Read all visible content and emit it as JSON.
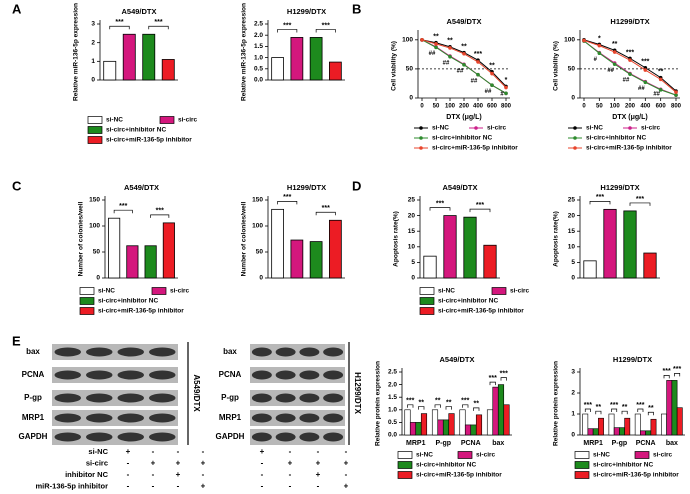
{
  "groups": {
    "names": [
      "si-NC",
      "si-circ",
      "si-circ+inhibitor NC",
      "si-circ+miR-136-5p inhibitor"
    ],
    "colors": [
      "#ffffff",
      "#d4177d",
      "#1d8a1d",
      "#ec1c24"
    ]
  },
  "chart_data": [
    {
      "type": "bar",
      "panel": "A",
      "title": "A549/DTX",
      "y_label": "Relative miR-136-5p expression",
      "values": [
        1.0,
        2.45,
        2.45,
        1.1
      ],
      "ylim": [
        0,
        3
      ],
      "yticks": [
        0,
        1,
        2,
        3
      ],
      "significance": [
        "***",
        "***"
      ]
    },
    {
      "type": "bar",
      "title": "H1299/DTX",
      "y_label": "Relative miR-136-5p expression",
      "values": [
        1.0,
        1.9,
        1.9,
        0.8
      ],
      "ylim": [
        0,
        2.5
      ],
      "yticks": [
        {
          "value": 0,
          "label": "0.0"
        },
        {
          "value": 0.5,
          "label": "0.5"
        },
        {
          "value": 1,
          "label": "1.0"
        },
        {
          "value": 1.5,
          "label": "1.5"
        },
        {
          "value": 2,
          "label": "2.0"
        },
        {
          "value": 2.5,
          "label": "2.5"
        }
      ],
      "significance": [
        "***",
        "***"
      ]
    },
    {
      "type": "line",
      "panel": "B",
      "title": "A549/DTX",
      "y_label": "Cell viability (%)",
      "x_label": "DTX (μg/L)",
      "categories": [
        "0",
        "50",
        "100",
        "200",
        "400",
        "600",
        "800"
      ],
      "ylim": [
        0,
        110
      ],
      "yticks": [
        0,
        50,
        100
      ],
      "hline": 50,
      "series": [
        {
          "color": "#000000",
          "values": [
            100,
            95,
            88,
            78,
            65,
            45,
            20
          ]
        },
        {
          "color": "#cc1f8a",
          "values": [
            100,
            88,
            72,
            58,
            40,
            22,
            8
          ]
        },
        {
          "color": "#2e8b2e",
          "values": [
            100,
            87,
            71,
            57,
            40,
            22,
            8
          ]
        },
        {
          "color": "#e8452c",
          "values": [
            100,
            93,
            86,
            76,
            62,
            42,
            18
          ]
        }
      ],
      "significance": [
        null,
        "**",
        "**",
        "**",
        "***",
        "**",
        "*"
      ],
      "reversal": [
        null,
        "##",
        "##",
        "##",
        "##",
        "##",
        "#"
      ]
    },
    {
      "type": "line",
      "title": "H1299/DTX",
      "y_label": "Cell viability (%)",
      "x_label": "DTX (μg/L)",
      "categories": [
        "0",
        "50",
        "100",
        "200",
        "400",
        "600",
        "800"
      ],
      "ylim": [
        0,
        110
      ],
      "yticks": [
        0,
        50,
        100
      ],
      "hline": 50,
      "series": [
        {
          "color": "#000000",
          "values": [
            100,
            92,
            82,
            68,
            52,
            35,
            12
          ]
        },
        {
          "color": "#cc1f8a",
          "values": [
            98,
            78,
            60,
            42,
            28,
            15,
            5
          ]
        },
        {
          "color": "#2e8b2e",
          "values": [
            98,
            77,
            58,
            41,
            27,
            14,
            5
          ]
        },
        {
          "color": "#e8452c",
          "values": [
            99,
            90,
            79,
            65,
            48,
            32,
            10
          ]
        }
      ],
      "significance": [
        null,
        "*",
        "**",
        "***",
        "***",
        "**",
        null
      ],
      "reversal": [
        null,
        "#",
        "##",
        "##",
        "##",
        "##",
        null
      ]
    },
    {
      "type": "bar",
      "panel": "C",
      "title": "A549/DTX",
      "y_label": "Number of colonies/well",
      "values": [
        115,
        62,
        62,
        106
      ],
      "ylim": [
        0,
        150
      ],
      "yticks": [
        0,
        50,
        100,
        150
      ],
      "significance": [
        "***",
        "***"
      ]
    },
    {
      "type": "bar",
      "title": "H1299/DTX",
      "y_label": "Number of colonies/well",
      "values": [
        132,
        73,
        70,
        111
      ],
      "ylim": [
        0,
        150
      ],
      "yticks": [
        0,
        50,
        100,
        150
      ],
      "significance": [
        "***",
        "***"
      ]
    },
    {
      "type": "bar",
      "panel": "D",
      "title": "A549/DTX",
      "y_label": "Apoptosis rate(%)",
      "values": [
        7,
        20,
        19.5,
        10.5
      ],
      "ylim": [
        0,
        25
      ],
      "yticks": [
        0,
        5,
        10,
        15,
        20,
        25
      ],
      "significance": [
        "***",
        "***"
      ]
    },
    {
      "type": "bar",
      "title": "H1299/DTX",
      "y_label": "Apoptosis rate(%)",
      "values": [
        5.5,
        22,
        21.5,
        8
      ],
      "ylim": [
        0,
        25
      ],
      "yticks": [
        0,
        5,
        10,
        15,
        20,
        25
      ],
      "significance": [
        "***",
        "***"
      ]
    },
    {
      "type": "grouped_bar",
      "panel": "E",
      "title": "A549/DTX",
      "y_label": "Relative protein expression",
      "categories": [
        "MRP1",
        "P-gp",
        "PCNA",
        "bax"
      ],
      "ylim": [
        0,
        2.5
      ],
      "yticks": [
        {
          "value": 0,
          "label": "0.0"
        },
        {
          "value": 0.5,
          "label": "0.5"
        },
        {
          "value": 1,
          "label": "1.0"
        },
        {
          "value": 1.5,
          "label": "1.5"
        },
        {
          "value": 2,
          "label": "2.0"
        },
        {
          "value": 2.5,
          "label": "2.5"
        }
      ],
      "series": [
        {
          "values": [
            1,
            1,
            1,
            1
          ]
        },
        {
          "values": [
            0.5,
            0.6,
            0.4,
            1.9
          ]
        },
        {
          "values": [
            0.5,
            0.6,
            0.4,
            2.0
          ]
        },
        {
          "values": [
            0.85,
            0.85,
            0.8,
            1.2
          ]
        }
      ],
      "significance": [
        [
          "***",
          "**"
        ],
        [
          "**",
          "**"
        ],
        [
          "***",
          "**"
        ],
        [
          "***",
          "***"
        ]
      ]
    },
    {
      "type": "grouped_bar",
      "title": "H1299/DTX",
      "y_label": "Relative protein expression",
      "categories": [
        "MRP1",
        "P-gp",
        "PCNA",
        "bax"
      ],
      "ylim": [
        0,
        3
      ],
      "yticks": [
        0,
        1,
        2,
        3
      ],
      "series": [
        {
          "values": [
            1,
            1,
            1,
            1
          ]
        },
        {
          "values": [
            0.3,
            0.35,
            0.2,
            2.6
          ]
        },
        {
          "values": [
            0.3,
            0.35,
            0.2,
            2.6
          ]
        },
        {
          "values": [
            0.8,
            0.8,
            0.75,
            1.3
          ]
        }
      ],
      "significance": [
        [
          "***",
          "**"
        ],
        [
          "***",
          "**"
        ],
        [
          "***",
          "**"
        ],
        [
          "***",
          "***"
        ]
      ]
    }
  ],
  "western_blot": {
    "proteins": [
      "bax",
      "PCNA",
      "P-gp",
      "MRP1",
      "GAPDH"
    ],
    "cell_lines": [
      "A549/DTX",
      "H1299/DTX"
    ],
    "conditions": [
      {
        "name": "si-NC",
        "signs": [
          "+",
          "-",
          "-",
          "-"
        ]
      },
      {
        "name": "si-circ",
        "signs": [
          "-",
          "+",
          "+",
          "+"
        ]
      },
      {
        "name": "inhibitor NC",
        "signs": [
          "-",
          "-",
          "+",
          "-"
        ]
      },
      {
        "name": "miR-136-5p inhibitor",
        "signs": [
          "-",
          "-",
          "-",
          "+"
        ]
      }
    ]
  }
}
